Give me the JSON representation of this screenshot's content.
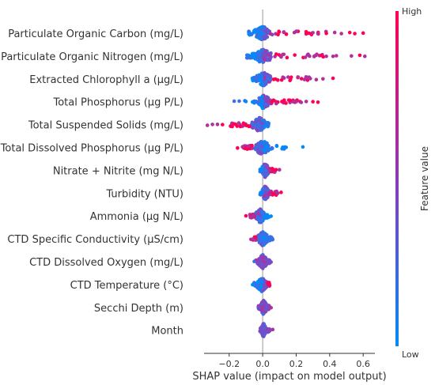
{
  "chart_data": {
    "type": "scatter",
    "subtype": "shap-beeswarm",
    "title": "",
    "xlabel": "SHAP value (impact on model output)",
    "ylabel": "",
    "xlim": [
      -0.35,
      0.67
    ],
    "xticks": [
      -0.2,
      0.0,
      0.2,
      0.4,
      0.6
    ],
    "xtick_labels": [
      "−0.2",
      "0.0",
      "0.2",
      "0.4",
      "0.6"
    ],
    "zero_line": 0.0,
    "grid": false,
    "colorbar": {
      "label": "Feature value",
      "high_label": "High",
      "low_label": "Low",
      "high_color": "#ff0052",
      "low_color": "#008bfb",
      "placement": "right"
    },
    "features": [
      {
        "name": "Particulate Organic Carbon (mg/L)",
        "min": -0.1,
        "max": 0.61,
        "core": [
          -0.06,
          0.06
        ],
        "high_side": "positive",
        "outliers": [
          0.26,
          0.3,
          0.33,
          0.38,
          0.43,
          0.47,
          0.52,
          0.55,
          0.6
        ]
      },
      {
        "name": "Particulate Organic Nitrogen (mg/L)",
        "min": -0.12,
        "max": 0.62,
        "core": [
          -0.07,
          0.07
        ],
        "high_side": "positive",
        "outliers": [
          0.28,
          0.31,
          0.35,
          0.38,
          0.42,
          0.44,
          0.53,
          0.58,
          0.61
        ]
      },
      {
        "name": "Extracted Chlorophyll a (μg/L)",
        "min": -0.07,
        "max": 0.44,
        "core": [
          -0.05,
          0.06
        ],
        "high_side": "positive",
        "outliers": [
          0.25,
          0.28,
          0.32,
          0.36,
          0.42
        ]
      },
      {
        "name": "Total Phosphorus (μg P/L)",
        "min": -0.17,
        "max": 0.34,
        "core": [
          -0.04,
          0.05
        ],
        "high_side": "positive",
        "outliers": [
          -0.17,
          -0.14,
          -0.1,
          0.2,
          0.23,
          0.26,
          0.3,
          0.33
        ]
      },
      {
        "name": "Total Suspended Solids (mg/L)",
        "min": -0.33,
        "max": 0.04,
        "core": [
          -0.07,
          0.03
        ],
        "high_side": "negative",
        "outliers": [
          -0.33,
          -0.3,
          -0.27,
          -0.24
        ]
      },
      {
        "name": "Total Dissolved Phosphorus (μg P/L)",
        "min": -0.15,
        "max": 0.24,
        "core": [
          -0.06,
          0.05
        ],
        "high_side": "negative",
        "outliers": [
          -0.15,
          -0.12,
          0.12,
          0.14,
          0.24
        ]
      },
      {
        "name": "Nitrate + Nitrite (mg N/L)",
        "min": -0.02,
        "max": 0.1,
        "core": [
          -0.01,
          0.04
        ],
        "high_side": "positive",
        "outliers": [
          0.08,
          0.1
        ]
      },
      {
        "name": "Turbidity (NTU)",
        "min": -0.02,
        "max": 0.12,
        "core": [
          -0.01,
          0.04
        ],
        "high_side": "positive",
        "outliers": [
          0.09,
          0.11
        ]
      },
      {
        "name": "Ammonia (μg N/L)",
        "min": -0.1,
        "max": 0.05,
        "core": [
          -0.05,
          0.02
        ],
        "high_side": "negative",
        "outliers": [
          -0.1,
          0.05
        ]
      },
      {
        "name": "CTD Specific Conductivity (μS/cm)",
        "min": -0.07,
        "max": 0.07,
        "core": [
          -0.04,
          0.04
        ],
        "high_side": "negative",
        "outliers": [
          -0.07,
          0.06
        ]
      },
      {
        "name": "CTD Dissolved Oxygen (mg/L)",
        "min": -0.05,
        "max": 0.05,
        "core": [
          -0.03,
          0.03
        ],
        "high_side": "mixed",
        "outliers": [
          -0.05,
          0.05
        ]
      },
      {
        "name": "CTD Temperature (°C)",
        "min": -0.06,
        "max": 0.05,
        "core": [
          -0.04,
          0.03
        ],
        "high_side": "positive",
        "outliers": [
          -0.06
        ]
      },
      {
        "name": "Secchi Depth (m)",
        "min": -0.03,
        "max": 0.05,
        "core": [
          -0.02,
          0.03
        ],
        "high_side": "mixed",
        "outliers": [
          0.05
        ]
      },
      {
        "name": "Month",
        "min": -0.02,
        "max": 0.06,
        "core": [
          -0.01,
          0.02
        ],
        "high_side": "mixed",
        "outliers": [
          0.04,
          0.06
        ]
      }
    ]
  }
}
